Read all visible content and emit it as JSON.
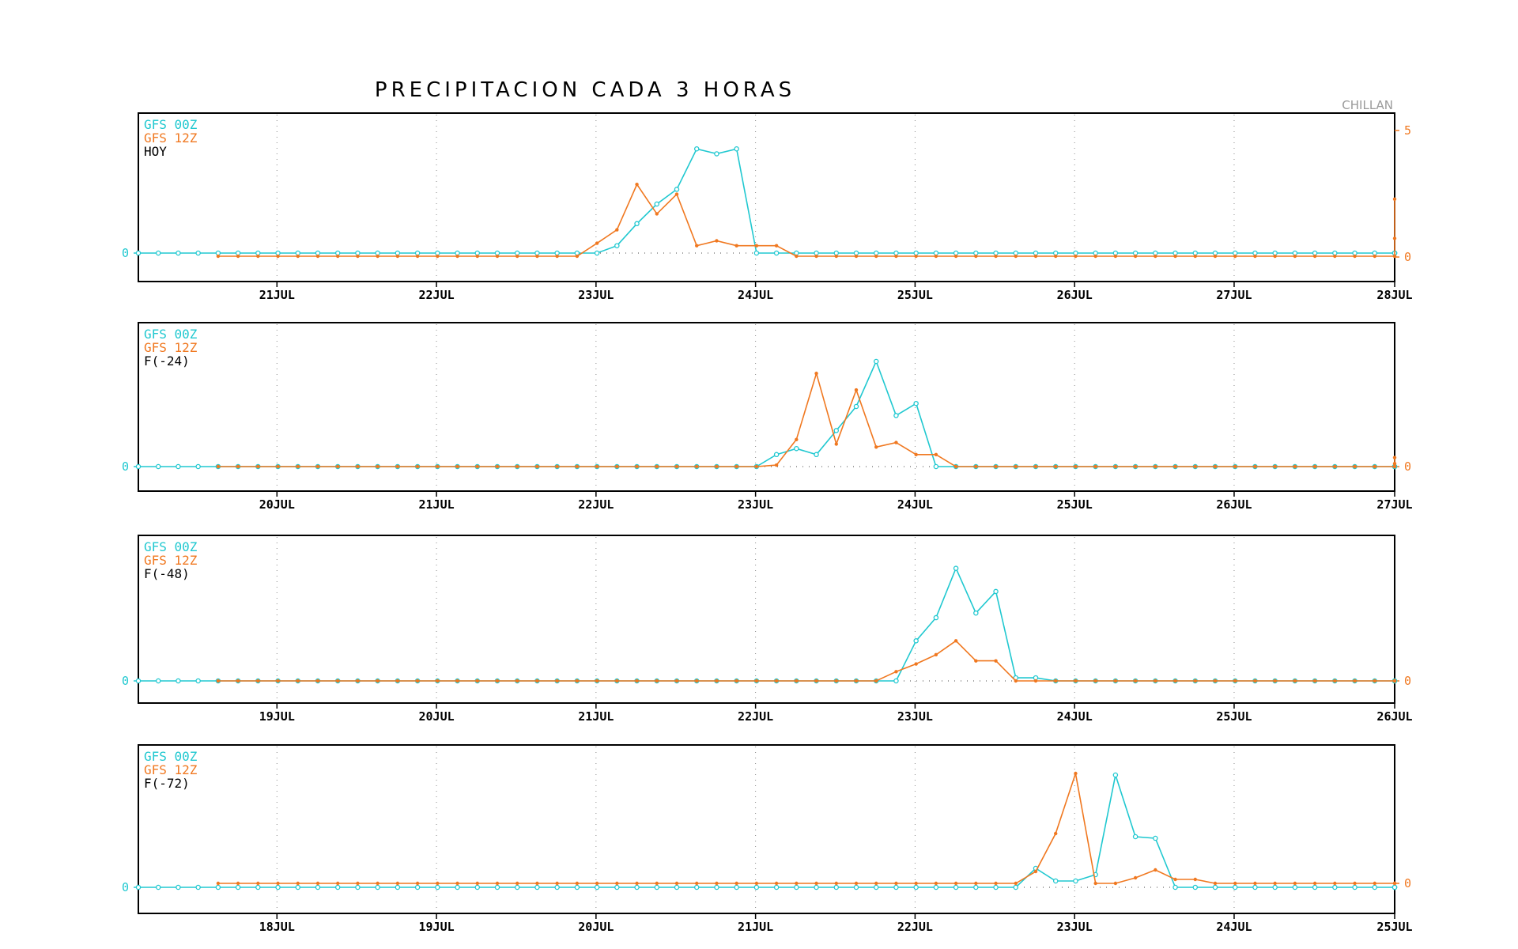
{
  "page": {
    "title": "PRECIPITACION CADA 3 HORAS",
    "location": "CHILLAN"
  },
  "colors": {
    "gfs00": "#20c8d0",
    "gfs12": "#f07820",
    "axis": "#000000",
    "grid": "#888888",
    "location": "#9a9a9a"
  },
  "chart_data": [
    {
      "type": "line",
      "panel_label": "HOY",
      "x_tick_labels": [
        "21JUL",
        "22JUL",
        "23JUL",
        "24JUL",
        "25JUL",
        "26JUL",
        "27JUL",
        "28JUL"
      ],
      "left_tick_labels": [
        "0"
      ],
      "right_tick_labels": [
        "0",
        "5"
      ],
      "grid": true,
      "legend_position": "top-left",
      "series": [
        {
          "name": "GFS 00Z",
          "offset": 0,
          "values": [
            0,
            0,
            0,
            0,
            0,
            0,
            0,
            0,
            0,
            0,
            0,
            0,
            0,
            0,
            0,
            0,
            0,
            0,
            0,
            0,
            0,
            0,
            0,
            0,
            0.3,
            1.2,
            2.0,
            2.6,
            4.25,
            4.05,
            4.25,
            0,
            0,
            0,
            0,
            0,
            0,
            0,
            0,
            0,
            0,
            0,
            0,
            0,
            0,
            0,
            0,
            0,
            0,
            0,
            0,
            0,
            0,
            0,
            0,
            0,
            0,
            0,
            0,
            0,
            0,
            0,
            0,
            0,
            0,
            0
          ]
        },
        {
          "name": "GFS 12Z",
          "offset": 4,
          "values": [
            0,
            0,
            0,
            0,
            0,
            0,
            0,
            0,
            0,
            0,
            0,
            0,
            0,
            0,
            0,
            0,
            0,
            0,
            0,
            0.4,
            0.95,
            2.8,
            1.6,
            2.4,
            0.3,
            0.5,
            0.3,
            0.3,
            0.3,
            0,
            0,
            0,
            0,
            0,
            0,
            0,
            0,
            0,
            0,
            0,
            0,
            0,
            0,
            0,
            0,
            0,
            0,
            0,
            0,
            0,
            0,
            0,
            0,
            0,
            0,
            0,
            0,
            0,
            0,
            0,
            0,
            0.6,
            2.2
          ]
        }
      ]
    },
    {
      "type": "line",
      "panel_label": "F(-24)",
      "x_tick_labels": [
        "20JUL",
        "21JUL",
        "22JUL",
        "23JUL",
        "24JUL",
        "25JUL",
        "26JUL",
        "27JUL"
      ],
      "left_tick_labels": [
        "0"
      ],
      "right_tick_labels": [
        "0"
      ],
      "grid": true,
      "legend_position": "top-left",
      "series": [
        {
          "name": "GFS 00Z",
          "offset": 0,
          "values": [
            0,
            0,
            0,
            0,
            0,
            0,
            0,
            0,
            0,
            0,
            0,
            0,
            0,
            0,
            0,
            0,
            0,
            0,
            0,
            0,
            0,
            0,
            0,
            0,
            0,
            0,
            0,
            0,
            0,
            0,
            0,
            0,
            0.4,
            0.6,
            0.4,
            1.2,
            2.0,
            3.5,
            1.7,
            2.1,
            0,
            0,
            0,
            0,
            0,
            0,
            0,
            0,
            0,
            0,
            0,
            0,
            0,
            0,
            0,
            0,
            0,
            0,
            0,
            0,
            0,
            0,
            0,
            0,
            0,
            0
          ]
        },
        {
          "name": "GFS 12Z",
          "offset": 4,
          "values": [
            0,
            0,
            0,
            0,
            0,
            0,
            0,
            0,
            0,
            0,
            0,
            0,
            0,
            0,
            0,
            0,
            0,
            0,
            0,
            0,
            0,
            0,
            0,
            0,
            0,
            0,
            0,
            0,
            0.05,
            0.9,
            3.1,
            0.75,
            2.55,
            0.65,
            0.8,
            0.4,
            0.4,
            0,
            0,
            0,
            0,
            0,
            0,
            0,
            0,
            0,
            0,
            0,
            0,
            0,
            0,
            0,
            0,
            0,
            0,
            0,
            0,
            0,
            0,
            0,
            0,
            0.1,
            0.3
          ]
        }
      ]
    },
    {
      "type": "line",
      "panel_label": "F(-48)",
      "x_tick_labels": [
        "19JUL",
        "20JUL",
        "21JUL",
        "22JUL",
        "23JUL",
        "24JUL",
        "25JUL",
        "26JUL"
      ],
      "left_tick_labels": [
        "0"
      ],
      "right_tick_labels": [
        "0"
      ],
      "grid": true,
      "legend_position": "top-left",
      "series": [
        {
          "name": "GFS 00Z",
          "offset": 0,
          "values": [
            0,
            0,
            0,
            0,
            0,
            0,
            0,
            0,
            0,
            0,
            0,
            0,
            0,
            0,
            0,
            0,
            0,
            0,
            0,
            0,
            0,
            0,
            0,
            0,
            0,
            0,
            0,
            0,
            0,
            0,
            0,
            0,
            0,
            0,
            0,
            0,
            0,
            0,
            0,
            1.3,
            2.05,
            3.65,
            2.2,
            2.9,
            0.1,
            0.1,
            0,
            0,
            0,
            0,
            0,
            0,
            0,
            0,
            0,
            0,
            0,
            0,
            0,
            0,
            0,
            0,
            0,
            0,
            0,
            0
          ]
        },
        {
          "name": "GFS 12Z",
          "offset": 4,
          "values": [
            0,
            0,
            0,
            0,
            0,
            0,
            0,
            0,
            0,
            0,
            0,
            0,
            0,
            0,
            0,
            0,
            0,
            0,
            0,
            0,
            0,
            0,
            0,
            0,
            0,
            0,
            0,
            0,
            0,
            0,
            0,
            0,
            0,
            0,
            0.3,
            0.55,
            0.85,
            1.3,
            0.65,
            0.65,
            0,
            0,
            0,
            0,
            0,
            0,
            0,
            0,
            0,
            0,
            0,
            0,
            0,
            0,
            0,
            0,
            0,
            0,
            0,
            0,
            0,
            0,
            0
          ]
        }
      ]
    },
    {
      "type": "line",
      "panel_label": "F(-72)",
      "x_tick_labels": [
        "18JUL",
        "19JUL",
        "20JUL",
        "21JUL",
        "22JUL",
        "23JUL",
        "24JUL",
        "25JUL"
      ],
      "left_tick_labels": [
        "0"
      ],
      "right_tick_labels": [
        "0"
      ],
      "grid": true,
      "legend_position": "top-left",
      "series": [
        {
          "name": "GFS 00Z",
          "offset": 0,
          "values": [
            0,
            0,
            0,
            0,
            0,
            0,
            0,
            0,
            0,
            0,
            0,
            0,
            0,
            0,
            0,
            0,
            0,
            0,
            0,
            0,
            0,
            0,
            0,
            0,
            0,
            0,
            0,
            0,
            0,
            0,
            0,
            0,
            0,
            0,
            0,
            0,
            0,
            0,
            0,
            0,
            0,
            0,
            0,
            0,
            0,
            0.6,
            0.2,
            0.2,
            0.4,
            3.55,
            1.6,
            1.55,
            0,
            0,
            0,
            0,
            0,
            0,
            0,
            0,
            0,
            0,
            0,
            0,
            0,
            0
          ]
        },
        {
          "name": "GFS 12Z",
          "offset": 4,
          "values": [
            0.15,
            0.15,
            0.15,
            0.15,
            0.15,
            0.15,
            0.15,
            0.15,
            0.15,
            0.15,
            0.15,
            0.15,
            0.15,
            0.15,
            0.15,
            0.15,
            0.15,
            0.15,
            0.15,
            0.15,
            0.15,
            0.15,
            0.15,
            0.15,
            0.15,
            0.15,
            0.15,
            0.15,
            0.15,
            0.15,
            0.15,
            0.15,
            0.15,
            0.15,
            0.15,
            0.15,
            0.15,
            0.15,
            0.15,
            0.15,
            0.15,
            0.5,
            1.7,
            3.6,
            0.15,
            0.15,
            0.3,
            0.55,
            0.25,
            0.25,
            0.15,
            0.15,
            0.15,
            0.15,
            0.15,
            0.15,
            0.15,
            0.15,
            0.15,
            0.15,
            0.15,
            0.15
          ]
        }
      ]
    }
  ]
}
